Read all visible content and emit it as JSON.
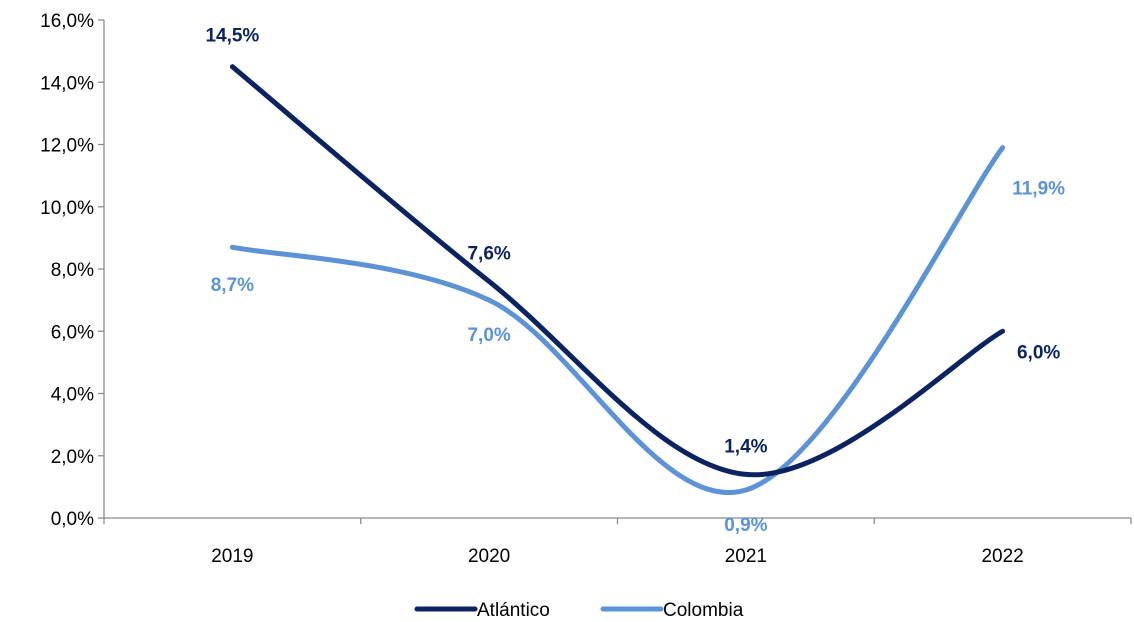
{
  "chart_data": {
    "type": "line",
    "title": "",
    "xlabel": "",
    "ylabel": "",
    "categories": [
      "2019",
      "2020",
      "2021",
      "2022"
    ],
    "ylim": [
      0,
      16
    ],
    "y_ticks": [
      "0,0%",
      "2,0%",
      "4,0%",
      "6,0%",
      "8,0%",
      "10,0%",
      "12,0%",
      "14,0%",
      "16,0%"
    ],
    "y_tick_values": [
      0,
      2,
      4,
      6,
      8,
      10,
      12,
      14,
      16
    ],
    "grid": false,
    "smooth": true,
    "legend_position": "bottom",
    "series": [
      {
        "name": "Atlántico",
        "values": [
          14.5,
          7.6,
          1.4,
          6.0
        ],
        "labels": [
          "14,5%",
          "7,6%",
          "1,4%",
          "6,0%"
        ],
        "color": "#0b2461"
      },
      {
        "name": "Colombia",
        "values": [
          8.7,
          7.0,
          0.9,
          11.9
        ],
        "labels": [
          "8,7%",
          "7,0%",
          "0,9%",
          "11,9%"
        ],
        "color": "#5b93d6"
      }
    ]
  }
}
